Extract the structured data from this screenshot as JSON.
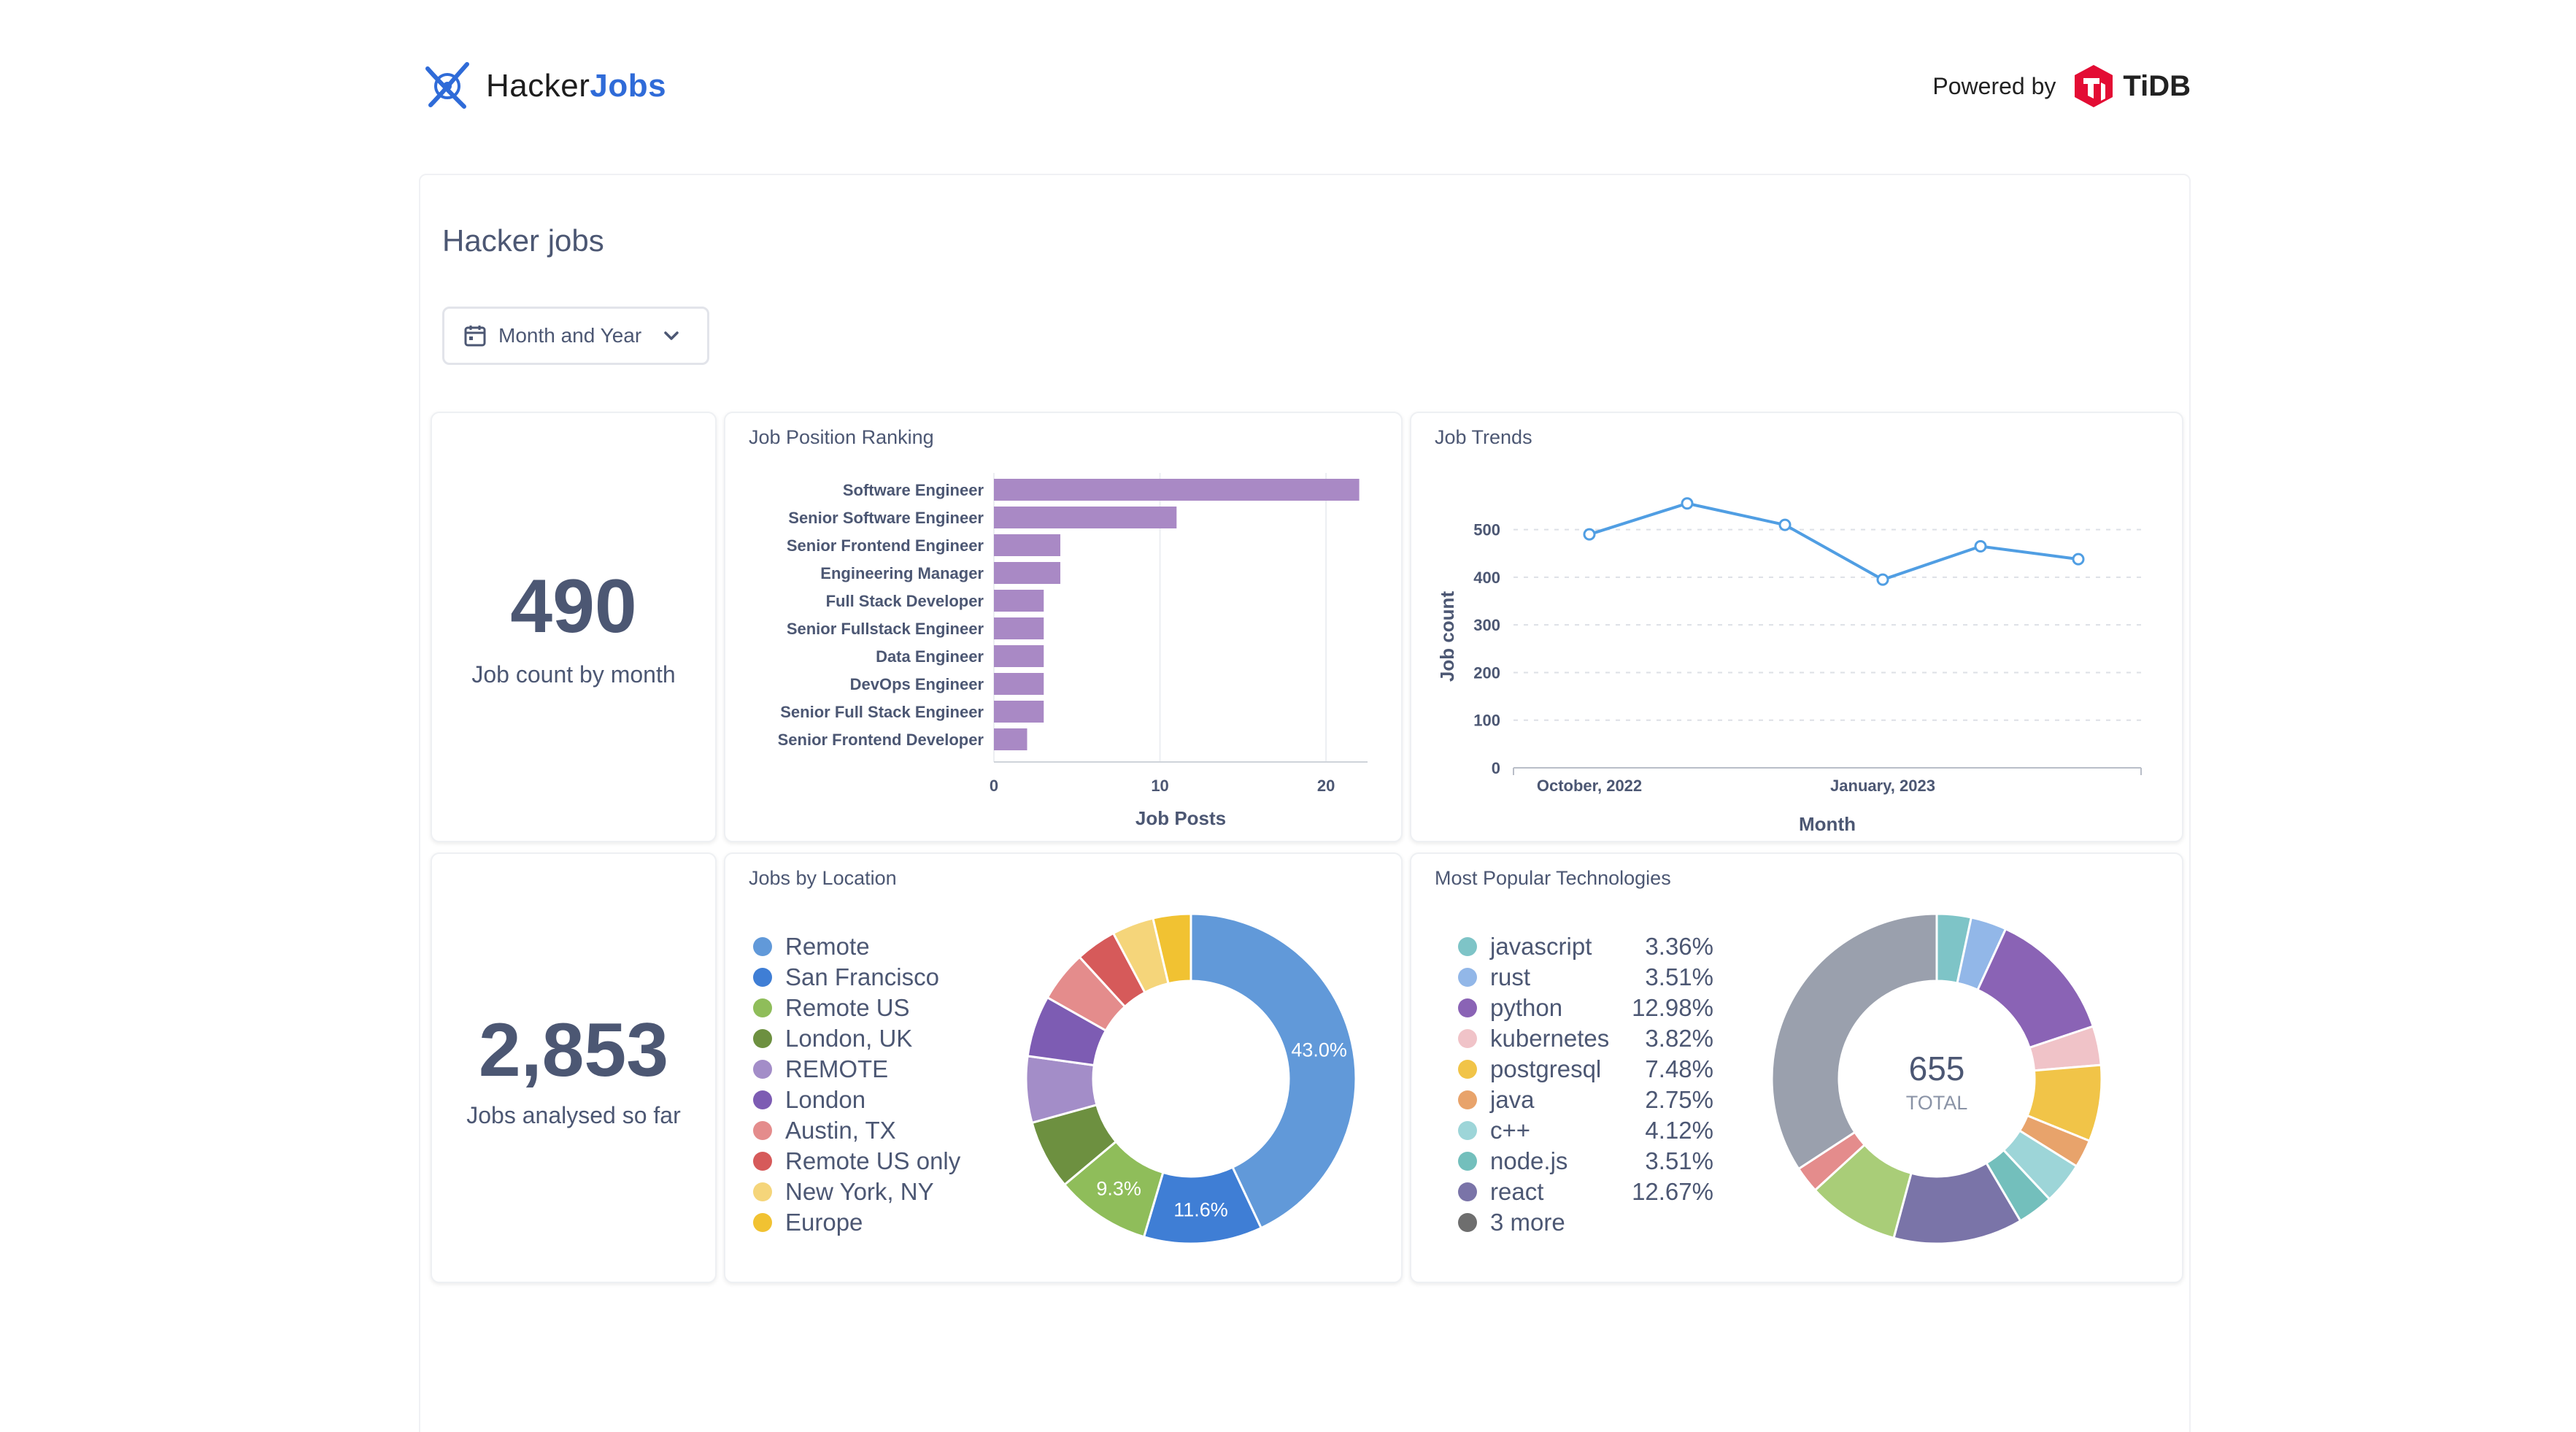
{
  "app": {
    "brand_prefix": "Hacker",
    "brand_suffix": "Jobs",
    "powered_by_label": "Powered by",
    "powered_by_brand": "TiDB"
  },
  "dashboard": {
    "title": "Hacker jobs",
    "filter": {
      "label": "Month and Year",
      "icon": "calendar-icon",
      "chevron": "chevron-down-icon"
    }
  },
  "scalars": {
    "job_count": {
      "value": "490",
      "label": "Job count by month"
    },
    "jobs_analysed": {
      "value": "2,853",
      "label": "Jobs analysed so far"
    }
  },
  "cards": {
    "ranking_title": "Job Position Ranking",
    "trends_title": "Job Trends",
    "location_title": "Jobs by Location",
    "tech_title": "Most Popular Technologies"
  },
  "colors": {
    "bar": "#a989c5",
    "line": "#509ee3",
    "text": "#4c5773"
  },
  "chart_data": [
    {
      "type": "bar",
      "orientation": "horizontal",
      "title": "Job Position Ranking",
      "xlabel": "Job Posts",
      "xlim": [
        0,
        22.5
      ],
      "xticks": [
        "0",
        "10",
        "20"
      ],
      "categories": [
        "Software Engineer",
        "Senior Software Engineer",
        "Senior Frontend Engineer",
        "Engineering Manager",
        "Full Stack Developer",
        "Senior Fullstack Engineer",
        "Data Engineer",
        "DevOps Engineer",
        "Senior Full Stack Engineer",
        "Senior Frontend Developer"
      ],
      "values": [
        22,
        11,
        4,
        4,
        3,
        3,
        3,
        3,
        3,
        2
      ],
      "grid": true
    },
    {
      "type": "line",
      "title": "Job Trends",
      "xlabel": "Month",
      "ylabel": "Job count",
      "ylim": [
        0,
        550
      ],
      "yticks": [
        "0",
        "100",
        "200",
        "300",
        "400",
        "500"
      ],
      "xtick_labels": [
        "October, 2022",
        "January, 2023"
      ],
      "x": [
        "2022-10",
        "2022-11",
        "2022-12",
        "2023-01",
        "2023-02",
        "2023-03"
      ],
      "values": [
        490,
        555,
        510,
        395,
        465,
        438
      ],
      "grid": true
    },
    {
      "type": "pie",
      "variant": "donut",
      "title": "Jobs by Location",
      "labels": [
        "Remote",
        "San Francisco",
        "Remote US",
        "London, UK",
        "REMOTE",
        "London",
        "Austin, TX",
        "Remote US only",
        "New York, NY",
        "Europe"
      ],
      "values": [
        43.0,
        11.6,
        9.3,
        6.8,
        6.5,
        6.0,
        5.0,
        4.0,
        4.1,
        3.7
      ],
      "slice_labels": [
        "43.0%",
        "11.6%",
        "9.3%",
        "",
        "",
        "",
        "",
        "",
        "",
        ""
      ],
      "colors": [
        "#6199d9",
        "#3f7ed5",
        "#8fbd5a",
        "#6d9040",
        "#a38dc8",
        "#7d5cb3",
        "#e48c8c",
        "#d65a5a",
        "#f5d57a",
        "#f1c232"
      ]
    },
    {
      "type": "pie",
      "variant": "donut",
      "title": "Most Popular Technologies",
      "total": "655",
      "total_label": "TOTAL",
      "labels": [
        "javascript",
        "rust",
        "python",
        "kubernetes",
        "postgresql",
        "java",
        "c++",
        "node.js",
        "react",
        "3 more"
      ],
      "values": [
        3.36,
        3.51,
        12.98,
        3.82,
        7.48,
        2.75,
        4.12,
        3.51,
        12.67,
        45.8
      ],
      "value_labels": [
        "3.36%",
        "3.51%",
        "12.98%",
        "3.82%",
        "7.48%",
        "2.75%",
        "4.12%",
        "3.51%",
        "12.67%",
        ""
      ],
      "colors": [
        "#7ec4c7",
        "#92b7e8",
        "#8a63b5",
        "#f0c3c8",
        "#f1c448",
        "#e8a36b",
        "#9dd5d8",
        "#73bfbc",
        "#7a74a8",
        "#6e6e6e"
      ],
      "extra_slices": [
        {
          "value": 9.0,
          "color": "#a9cd78"
        },
        {
          "value": 2.6,
          "color": "#e48c8c"
        },
        {
          "value": 34.2,
          "color": "#9aa0ad"
        }
      ]
    }
  ]
}
